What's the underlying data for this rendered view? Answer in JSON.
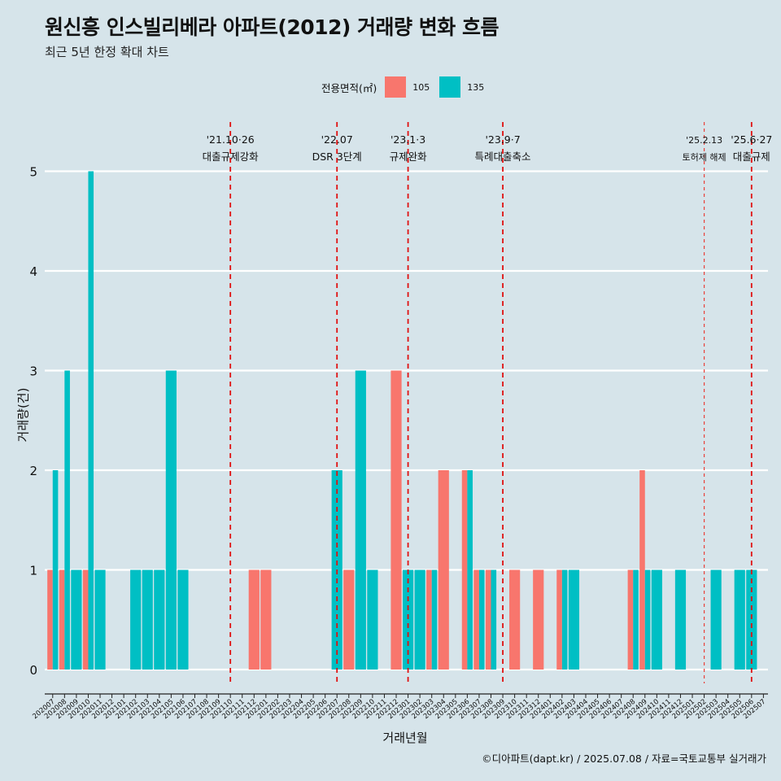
{
  "title": "원신흥 인스빌리베라 아파트(2012) 거래량 변화 흐름",
  "subtitle": "최근 5년 한정 확대 차트",
  "caption": "©디아파트(dapt.kr) / 2025.07.08 / 자료=국토교통부 실거래가",
  "legend": {
    "title": "전용면적(㎡)",
    "items": [
      {
        "label": "105",
        "color": "#f8766d"
      },
      {
        "label": "135",
        "color": "#00bfc4"
      }
    ]
  },
  "chart_data": {
    "type": "bar",
    "xlabel": "거래년월",
    "ylabel": "거래량(건)",
    "ylim": [
      0,
      5
    ],
    "yticks": [
      0,
      1,
      2,
      3,
      4,
      5
    ],
    "grid": true,
    "legend_position": "top",
    "categories": [
      "202007",
      "202008",
      "202009",
      "202010",
      "202011",
      "202012",
      "202101",
      "202102",
      "202103",
      "202104",
      "202105",
      "202106",
      "202107",
      "202108",
      "202109",
      "202110",
      "202111",
      "202112",
      "202201",
      "202202",
      "202203",
      "202204",
      "202205",
      "202206",
      "202207",
      "202208",
      "202209",
      "202210",
      "202211",
      "202212",
      "202301",
      "202302",
      "202303",
      "202304",
      "202305",
      "202306",
      "202307",
      "202308",
      "202309",
      "202310",
      "202311",
      "202312",
      "202401",
      "202402",
      "202403",
      "202404",
      "202405",
      "202406",
      "202407",
      "202408",
      "202409",
      "202410",
      "202411",
      "202412",
      "202501",
      "202502",
      "202503",
      "202504",
      "202505",
      "202506",
      "202507"
    ],
    "series": [
      {
        "name": "105",
        "color": "#f8766d",
        "values": [
          1,
          1,
          0,
          1,
          0,
          0,
          0,
          0,
          0,
          0,
          0,
          0,
          0,
          0,
          0,
          0,
          0,
          1,
          1,
          0,
          0,
          0,
          0,
          0,
          0,
          1,
          0,
          0,
          0,
          3,
          0,
          0,
          1,
          2,
          0,
          2,
          1,
          1,
          0,
          1,
          0,
          1,
          0,
          1,
          0,
          0,
          0,
          0,
          0,
          1,
          2,
          0,
          0,
          0,
          0,
          0,
          0,
          0,
          0,
          0,
          0
        ]
      },
      {
        "name": "135",
        "color": "#00bfc4",
        "values": [
          2,
          3,
          1,
          5,
          1,
          0,
          0,
          1,
          1,
          1,
          3,
          1,
          0,
          0,
          0,
          0,
          0,
          0,
          0,
          0,
          0,
          0,
          0,
          0,
          2,
          0,
          3,
          1,
          0,
          0,
          1,
          1,
          1,
          0,
          0,
          2,
          1,
          1,
          0,
          0,
          0,
          0,
          0,
          1,
          1,
          0,
          0,
          0,
          0,
          1,
          1,
          1,
          0,
          1,
          0,
          0,
          1,
          0,
          1,
          1,
          0
        ]
      }
    ],
    "events": [
      {
        "month": "202110",
        "date": "'21.10·26",
        "label": "대출규제강화",
        "style": "dashed"
      },
      {
        "month": "202207",
        "date": "'22.07",
        "label": "DSR 3단계",
        "style": "dashed"
      },
      {
        "month": "202301",
        "date": "'23.1·3",
        "label": "규제완화",
        "style": "dashed"
      },
      {
        "month": "202309",
        "date": "'23.9·7",
        "label": "특례대출축소",
        "style": "dashed"
      },
      {
        "month": "202502",
        "date": "'25.2.13",
        "label": "토허제 해제",
        "style": "dotted"
      },
      {
        "month": "202506",
        "date": "'25.6·27",
        "label": "대출규제",
        "style": "dashed"
      }
    ]
  }
}
